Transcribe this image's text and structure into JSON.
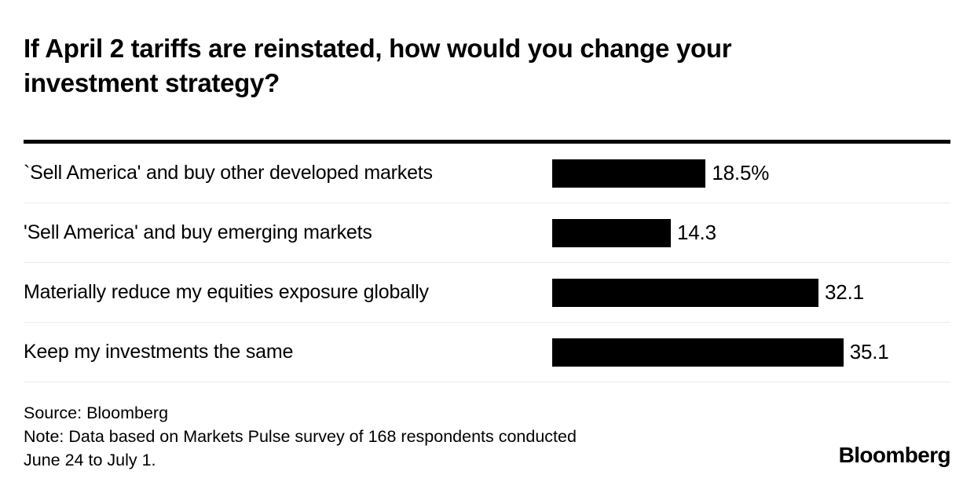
{
  "title": "If April 2 tariffs are reinstated, how would you change your investment strategy?",
  "chart_data": {
    "type": "bar",
    "orientation": "horizontal",
    "title": "If April 2 tariffs are reinstated, how would you change your investment strategy?",
    "categories": [
      "`Sell America' and buy other developed markets",
      "'Sell America' and buy emerging markets",
      "Materially reduce my equities exposure globally",
      "Keep my investments the same"
    ],
    "values": [
      18.5,
      14.3,
      32.1,
      35.1
    ],
    "value_labels": [
      "18.5%",
      "14.3",
      "32.1",
      "35.1"
    ],
    "unit": "percent",
    "xlim": [
      0,
      48
    ],
    "grid": false,
    "legend": false,
    "bar_color": "#000000"
  },
  "footer": {
    "source": "Source: Bloomberg",
    "note_line1": "Note: Data based on Markets Pulse survey of 168 respondents conducted",
    "note_line2": "June 24 to July 1.",
    "logo": "Bloomberg"
  },
  "colors": {
    "bar": "#000000",
    "text": "#000000",
    "separator": "#ebebeb",
    "top_rule": "#000000",
    "background": "#ffffff"
  }
}
